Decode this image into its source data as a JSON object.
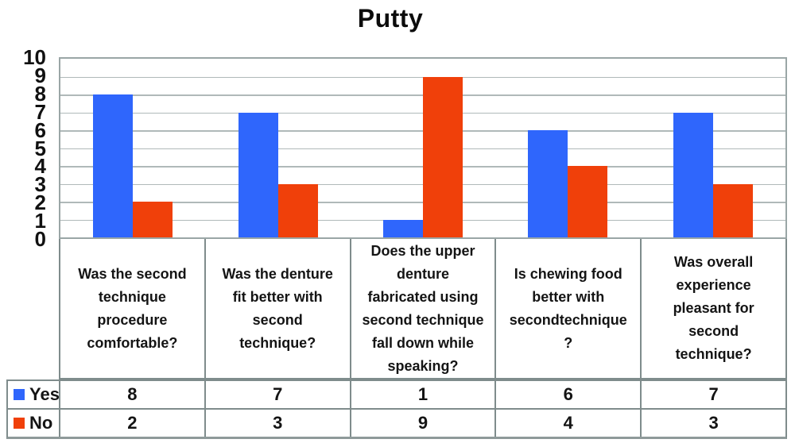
{
  "title": "Putty",
  "colors": {
    "yes": "#2f66fc",
    "no": "#f0400a",
    "gridline": "#b0b9b9",
    "plot_border": "#9aa6a6",
    "table_border": "#7f8c8c",
    "text": "#141414"
  },
  "chart_data": {
    "type": "bar",
    "title": "Putty",
    "categories": [
      "Was the second\ntechnique\nprocedure\ncomfortable?",
      "Was the denture\nfit better with\nsecond\ntechnique?",
      "Does the upper\ndenture\nfabricated using\nsecond technique\nfall down while\nspeaking?",
      "Is chewing food\nbetter with\nsecondtechnique\n?",
      "Was overall\nexperience\npleasant for\nsecond\ntechnique?"
    ],
    "series": [
      {
        "name": "Yes",
        "color": "#2f66fc",
        "values": [
          8,
          7,
          1,
          6,
          7
        ]
      },
      {
        "name": "No",
        "color": "#f0400a",
        "values": [
          2,
          3,
          9,
          4,
          3
        ]
      }
    ],
    "xlabel": "",
    "ylabel": "",
    "ylim": [
      0,
      10
    ],
    "yticks": [
      0,
      1,
      2,
      3,
      4,
      5,
      6,
      7,
      8,
      9,
      10
    ],
    "grid": true,
    "legend_position": "table-left-header"
  }
}
